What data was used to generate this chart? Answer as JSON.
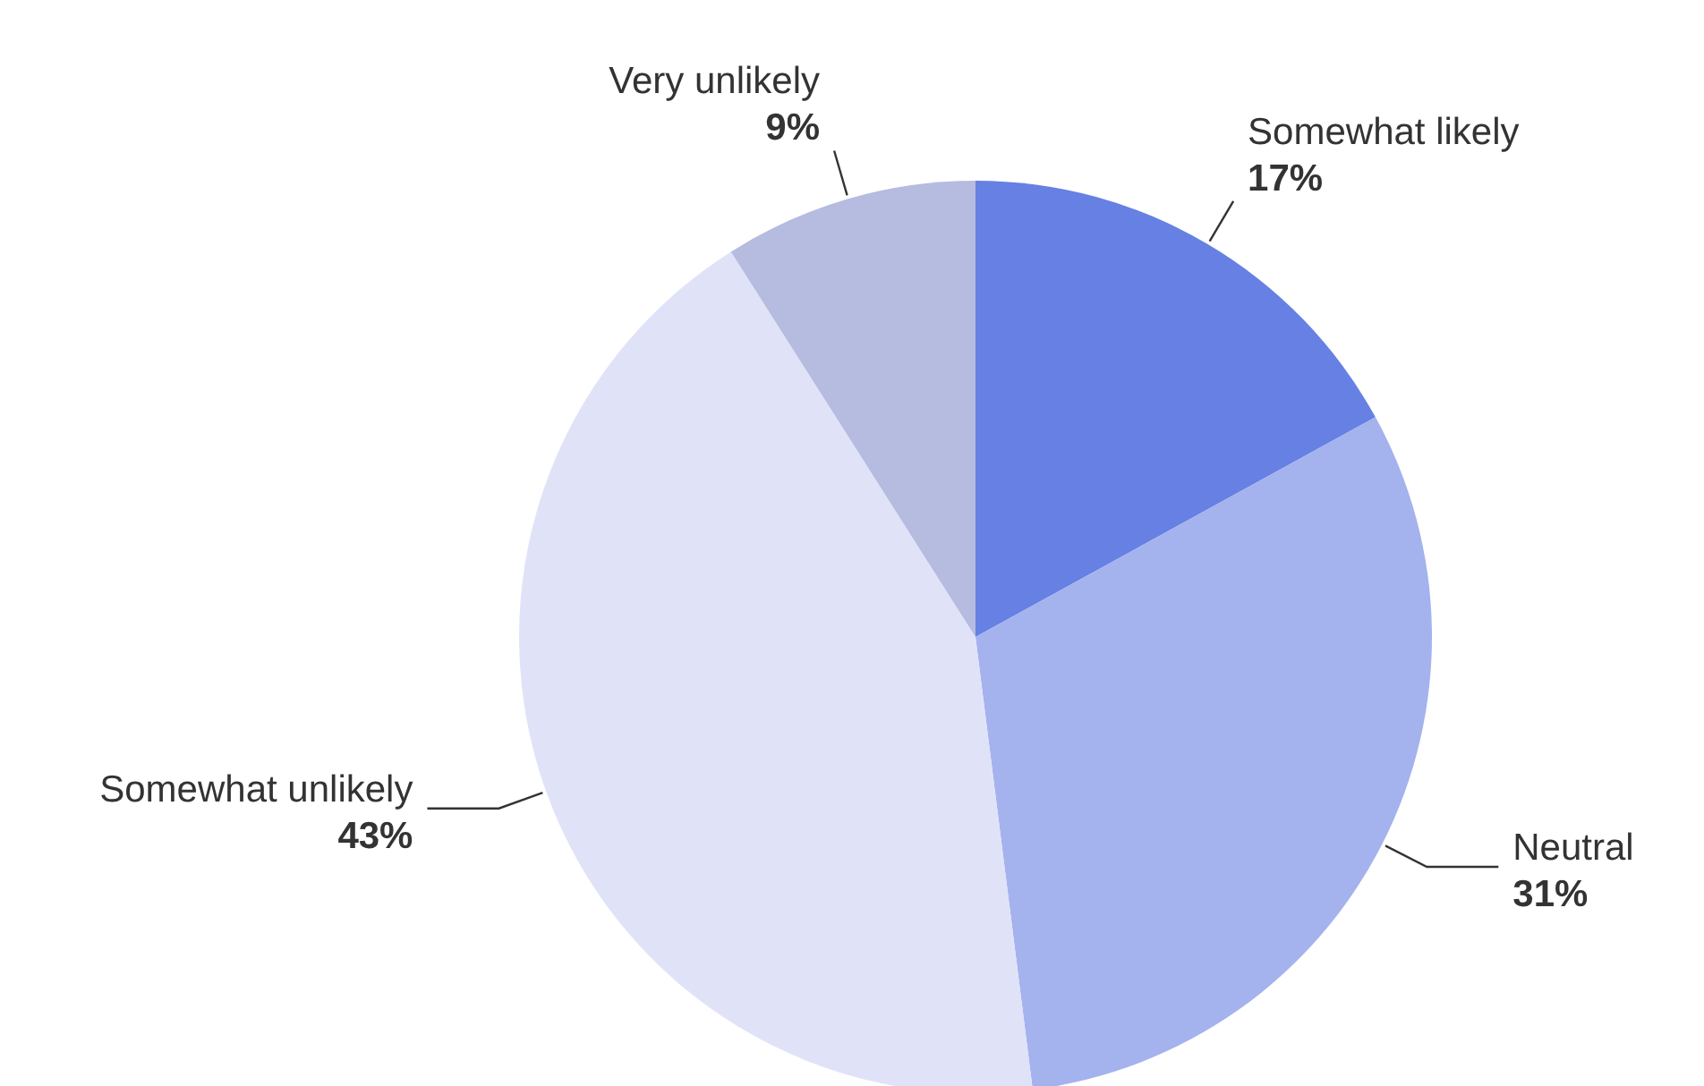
{
  "chart_data": {
    "type": "pie",
    "categories": [
      "Somewhat likely",
      "Neutral",
      "Somewhat unlikely",
      "Very unlikely"
    ],
    "values": [
      17,
      31,
      43,
      9
    ],
    "value_labels": [
      "17%",
      "31%",
      "43%",
      "9%"
    ],
    "colors": [
      "#6680e3",
      "#a4b2ee",
      "#e0e3f8",
      "#b6bbe0"
    ]
  }
}
